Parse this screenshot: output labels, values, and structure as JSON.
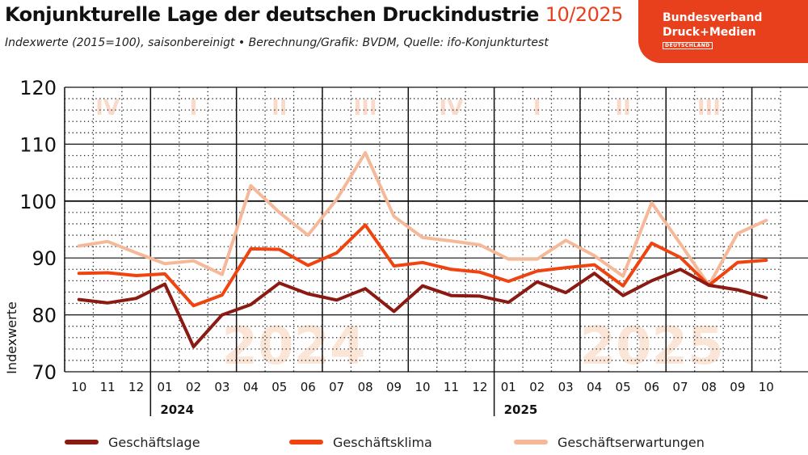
{
  "header": {
    "title": "Konjunkturelle Lage der deutschen Druckindustrie",
    "title_date": "10/2025",
    "subtitle": "Indexwerte (2015=100), saisonbereinigt • Berechnung/Grafik: BVDM, Quelle: ifo-Konjunkturtest"
  },
  "logo": {
    "line1": "Bundesverband",
    "line2": "Druck+Medien",
    "line3": "DEUTSCHLAND"
  },
  "colors": {
    "accent": "#e8401c",
    "lage": "#8b1a12",
    "klima": "#f04410",
    "erwartungen": "#f5b99a",
    "quarter_label": "#fad9c8",
    "year_watermark": "#fbe5d6"
  },
  "chart_data": {
    "type": "line",
    "ylabel": "Indexwerte",
    "ylim": [
      70,
      120
    ],
    "yticks": [
      70,
      80,
      90,
      100,
      110,
      120
    ],
    "grid": true,
    "x": [
      "10",
      "11",
      "12",
      "01",
      "02",
      "03",
      "04",
      "05",
      "06",
      "07",
      "08",
      "09",
      "10",
      "11",
      "12",
      "01",
      "02",
      "03",
      "04",
      "05",
      "06",
      "07",
      "08",
      "09",
      "10"
    ],
    "years": [
      {
        "label": "2024",
        "start_index": 3
      },
      {
        "label": "2025",
        "start_index": 15
      }
    ],
    "quarters": [
      {
        "label": "IV",
        "start": 0,
        "end": 3
      },
      {
        "label": "I",
        "start": 3,
        "end": 6
      },
      {
        "label": "II",
        "start": 6,
        "end": 9
      },
      {
        "label": "III",
        "start": 9,
        "end": 12
      },
      {
        "label": "IV",
        "start": 12,
        "end": 15
      },
      {
        "label": "I",
        "start": 15,
        "end": 18
      },
      {
        "label": "II",
        "start": 18,
        "end": 21
      },
      {
        "label": "III",
        "start": 21,
        "end": 24
      }
    ],
    "watermarks": [
      {
        "label": "2024",
        "center_index": 7.5
      },
      {
        "label": "2025",
        "center_index": 20
      }
    ],
    "series": [
      {
        "name": "Geschäftslage",
        "color": "#8b1a12",
        "values": [
          82.7,
          82.1,
          82.9,
          85.4,
          74.4,
          80.0,
          81.8,
          85.6,
          83.7,
          82.6,
          84.6,
          80.6,
          85.1,
          83.4,
          83.3,
          82.2,
          85.8,
          83.9,
          87.3,
          83.4,
          86.0,
          88.0,
          85.2,
          84.4,
          83.0
        ]
      },
      {
        "name": "Geschäftsklima",
        "color": "#f04410",
        "values": [
          87.3,
          87.4,
          86.9,
          87.2,
          81.6,
          83.5,
          91.6,
          91.5,
          88.7,
          90.9,
          95.8,
          88.6,
          89.2,
          88.0,
          87.5,
          85.9,
          87.7,
          88.3,
          88.8,
          85.1,
          92.6,
          90.1,
          85.2,
          89.2,
          89.6
        ]
      },
      {
        "name": "Geschäftserwartungen",
        "color": "#f5b99a",
        "values": [
          92.1,
          92.9,
          90.9,
          89.0,
          89.5,
          87.1,
          102.7,
          98.0,
          94.0,
          100.3,
          108.5,
          97.3,
          93.6,
          93.0,
          92.3,
          89.8,
          89.8,
          93.1,
          90.4,
          86.8,
          99.7,
          92.5,
          85.2,
          94.3,
          96.6
        ]
      }
    ]
  }
}
